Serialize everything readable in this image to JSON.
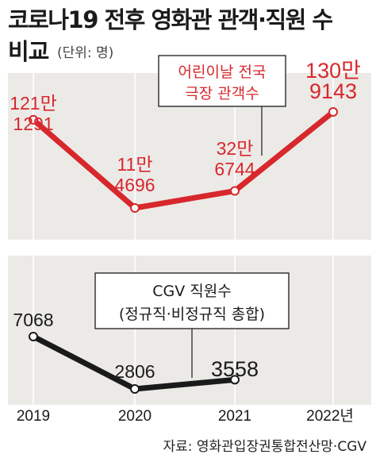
{
  "title_line1": "코로나19 전후 영화관 관객·직원 수",
  "title_line2": "비교",
  "unit_note": "(단위: 명)",
  "source": "자료: 영화관입장권통합전산망·CGV",
  "colors": {
    "red": "#d7282c",
    "black": "#1a1a1a",
    "panel": "#eceae7"
  },
  "chart_data": [
    {
      "type": "line",
      "name": "어린이날 전국 극장 관객수",
      "box_lines": [
        "어린이날 전국",
        "극장 관객수"
      ],
      "categories": [
        "2019",
        "2020",
        "2021",
        "2022년"
      ],
      "values": [
        1211291,
        114696,
        326744,
        1309143
      ],
      "value_labels": [
        [
          "121만",
          "1291"
        ],
        [
          "11만",
          "4696"
        ],
        [
          "32만",
          "6744"
        ],
        [
          "130만",
          "9143"
        ]
      ],
      "color": "#d7282c"
    },
    {
      "type": "line",
      "name": "CGV 직원수",
      "box_lines": [
        "CGV 직원수",
        "(정규직·비정규직 총합)"
      ],
      "categories": [
        "2019",
        "2020",
        "2021",
        "2022년"
      ],
      "values": [
        7068,
        2806,
        3558,
        null
      ],
      "value_labels": [
        "7068",
        "2806",
        "3558",
        null
      ],
      "color": "#1a1a1a"
    }
  ]
}
